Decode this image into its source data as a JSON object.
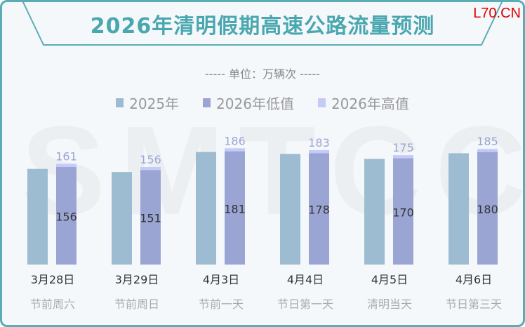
{
  "title": "2026年清明假期高速公路流量预测",
  "brand": "L70.CN",
  "unit": "----- 单位：万辆次 -----",
  "watermark": "SMTCC",
  "colors": {
    "y2025": "#9dbcd2",
    "low": "#9ba5d4",
    "high": "#c5cbf9",
    "frame": "#5aadb5"
  },
  "chart_data": {
    "type": "bar",
    "title": "2026年清明假期高速公路流量预测",
    "ylabel": "万辆次",
    "categories": [
      "3月28日",
      "3月29日",
      "4月3日",
      "4月4日",
      "4月5日",
      "4月6日"
    ],
    "subcategories": [
      "节前周六",
      "节前周日",
      "节前一天",
      "节日第一天",
      "清明当天",
      "节日第三天"
    ],
    "legend": [
      "2025年",
      "2026年低值",
      "2026年高值"
    ],
    "series": [
      {
        "name": "2025年",
        "values": [
          153,
          148,
          180,
          177,
          169,
          178
        ]
      },
      {
        "name": "2026年低值",
        "values": [
          156,
          151,
          181,
          178,
          170,
          180
        ]
      },
      {
        "name": "2026年高值",
        "values": [
          161,
          156,
          186,
          183,
          175,
          185
        ]
      }
    ],
    "ylim": [
      0,
      190
    ]
  }
}
